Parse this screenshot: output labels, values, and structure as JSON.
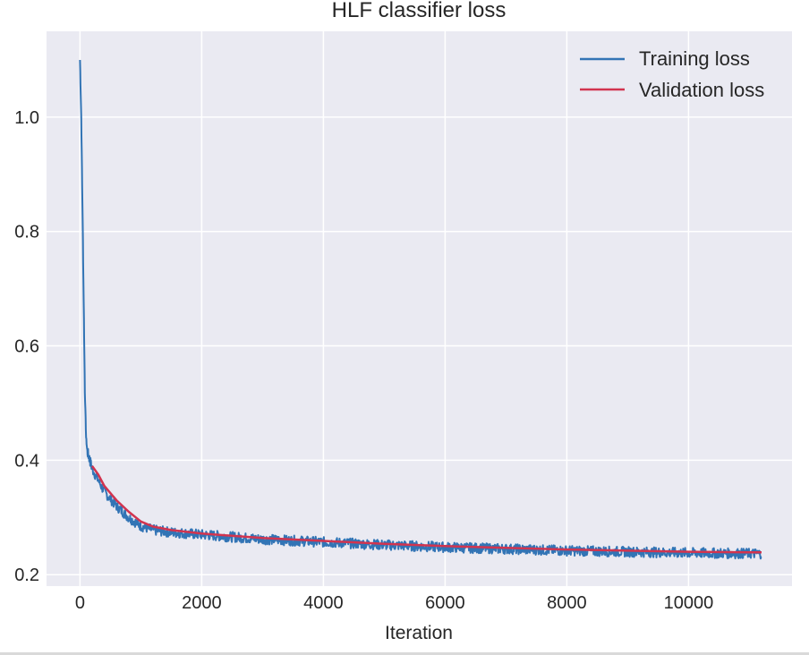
{
  "chart_data": {
    "type": "line",
    "title": "HLF classifier loss",
    "xlabel": "Iteration",
    "ylabel": "",
    "xlim": [
      -550,
      11700
    ],
    "ylim": [
      0.18,
      1.15
    ],
    "xticks": [
      0,
      2000,
      4000,
      6000,
      8000,
      10000
    ],
    "yticks": [
      0.2,
      0.4,
      0.6,
      0.8,
      1.0
    ],
    "xtick_labels": [
      "0",
      "2000",
      "4000",
      "6000",
      "8000",
      "10000"
    ],
    "ytick_labels": [
      "0.2",
      "0.4",
      "0.6",
      "0.8",
      "1.0"
    ],
    "grid": true,
    "legend_position": "top-right",
    "series": [
      {
        "name": "Training loss",
        "color": "#3274b5",
        "x": [
          0,
          20,
          40,
          60,
          80,
          100,
          120,
          150,
          200,
          300,
          400,
          600,
          800,
          1000,
          1200,
          1500,
          2000,
          2500,
          3000,
          4000,
          5000,
          6000,
          7000,
          8000,
          9000,
          10000,
          11000,
          11200
        ],
        "y": [
          1.1,
          1.0,
          0.85,
          0.68,
          0.52,
          0.44,
          0.415,
          0.405,
          0.385,
          0.365,
          0.345,
          0.32,
          0.3,
          0.285,
          0.278,
          0.274,
          0.27,
          0.266,
          0.262,
          0.257,
          0.252,
          0.248,
          0.245,
          0.242,
          0.24,
          0.238,
          0.237,
          0.237
        ],
        "noise_band": 0.009
      },
      {
        "name": "Validation loss",
        "color": "#d2344f",
        "x": [
          200,
          300,
          400,
          600,
          800,
          1000,
          1200,
          1500,
          2000,
          2500,
          3000,
          4000,
          5000,
          6000,
          7000,
          8000,
          9000,
          10000,
          11000,
          11200
        ],
        "y": [
          0.39,
          0.375,
          0.355,
          0.33,
          0.31,
          0.293,
          0.284,
          0.278,
          0.272,
          0.268,
          0.264,
          0.259,
          0.254,
          0.25,
          0.247,
          0.244,
          0.242,
          0.24,
          0.239,
          0.239
        ]
      }
    ]
  }
}
